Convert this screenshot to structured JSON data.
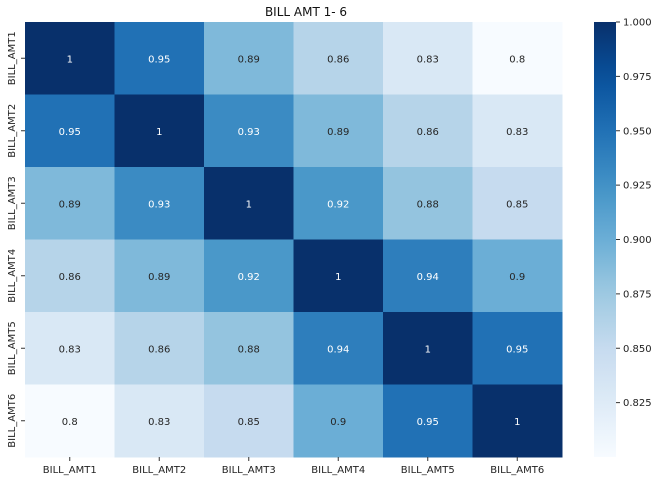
{
  "chart_data": {
    "type": "heatmap",
    "title": "BILL AMT 1- 6",
    "x_categories": [
      "BILL_AMT1",
      "BILL_AMT2",
      "BILL_AMT3",
      "BILL_AMT4",
      "BILL_AMT5",
      "BILL_AMT6"
    ],
    "y_categories": [
      "BILL_AMT1",
      "BILL_AMT2",
      "BILL_AMT3",
      "BILL_AMT4",
      "BILL_AMT5",
      "BILL_AMT6"
    ],
    "values": [
      [
        1,
        0.95,
        0.89,
        0.86,
        0.83,
        0.8
      ],
      [
        0.95,
        1,
        0.93,
        0.89,
        0.86,
        0.83
      ],
      [
        0.89,
        0.93,
        1,
        0.92,
        0.88,
        0.85
      ],
      [
        0.86,
        0.89,
        0.92,
        1,
        0.94,
        0.9
      ],
      [
        0.83,
        0.86,
        0.88,
        0.94,
        1,
        0.95
      ],
      [
        0.8,
        0.83,
        0.85,
        0.9,
        0.95,
        1
      ]
    ],
    "annotations": [
      [
        "1",
        "0.95",
        "0.89",
        "0.86",
        "0.83",
        "0.8"
      ],
      [
        "0.95",
        "1",
        "0.93",
        "0.89",
        "0.86",
        "0.83"
      ],
      [
        "0.89",
        "0.93",
        "1",
        "0.92",
        "0.88",
        "0.85"
      ],
      [
        "0.86",
        "0.89",
        "0.92",
        "1",
        "0.94",
        "0.9"
      ],
      [
        "0.83",
        "0.86",
        "0.88",
        "0.94",
        "1",
        "0.95"
      ],
      [
        "0.8",
        "0.83",
        "0.85",
        "0.9",
        "0.95",
        "1"
      ]
    ],
    "colorbar": {
      "min": 0.8,
      "max": 1.0,
      "ticks": [
        0.825,
        0.85,
        0.875,
        0.9,
        0.925,
        0.95,
        0.975,
        1.0
      ],
      "tick_labels": [
        "0.825",
        "0.850",
        "0.875",
        "0.900",
        "0.925",
        "0.950",
        "0.975",
        "1.000"
      ]
    },
    "colormap": "Blues",
    "colors": {
      "low": "#f7fbff",
      "high": "#08306b",
      "annotation_light_text": "#ffffff",
      "annotation_dark_text": "#262626"
    },
    "grid": false
  }
}
